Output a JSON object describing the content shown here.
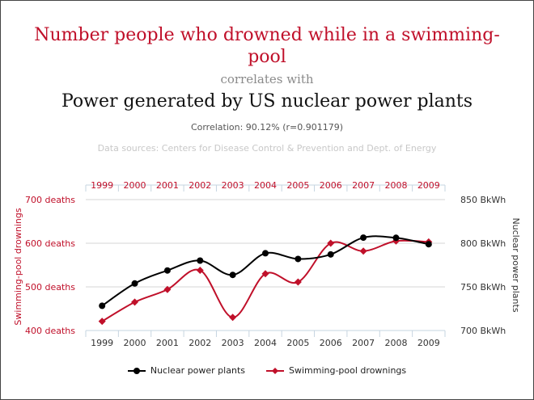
{
  "header": {
    "title_top": "Number people who drowned while in a swimming-pool",
    "correlates": "correlates with",
    "title_bottom": "Power generated by US nuclear power plants",
    "correlation": "Correlation: 90.12% (r=0.901179)",
    "sources": "Data sources: Centers for Disease Control & Prevention and Dept. of Energy"
  },
  "colors": {
    "drowning": "#c0102a",
    "nuclear": "#000000",
    "grid": "#d6d6d6",
    "axis": "#c6d4e0"
  },
  "chart_data": {
    "type": "line",
    "x": [
      "1999",
      "2000",
      "2001",
      "2002",
      "2003",
      "2004",
      "2005",
      "2006",
      "2007",
      "2008",
      "2009"
    ],
    "left_axis": {
      "label": "Swimming-pool drownings",
      "range": [
        400,
        700
      ],
      "ticks": [
        400,
        500,
        600,
        700
      ],
      "tick_labels": [
        "400 deaths",
        "500 deaths",
        "600 deaths",
        "700 deaths"
      ]
    },
    "right_axis": {
      "label": "Nuclear power plants",
      "range": [
        700,
        850
      ],
      "ticks": [
        700,
        750,
        800,
        850
      ],
      "tick_labels": [
        "700 BkWh",
        "750 BkWh",
        "800 BkWh",
        "850 BkWh"
      ]
    },
    "series": [
      {
        "name": "Nuclear power plants",
        "axis": "right",
        "marker": "circle",
        "color": "#000000",
        "values": [
          728.3,
          753.9,
          768.8,
          780.1,
          763.7,
          788.5,
          782.0,
          787.2,
          806.4,
          806.2,
          798.9
        ]
      },
      {
        "name": "Swimming-pool drownings",
        "axis": "left",
        "marker": "diamond",
        "color": "#c0102a",
        "values": [
          421,
          465,
          494,
          538,
          430,
          530,
          511,
          600,
          582,
          605,
          603
        ]
      }
    ],
    "grid": true,
    "legend_position": "bottom"
  }
}
